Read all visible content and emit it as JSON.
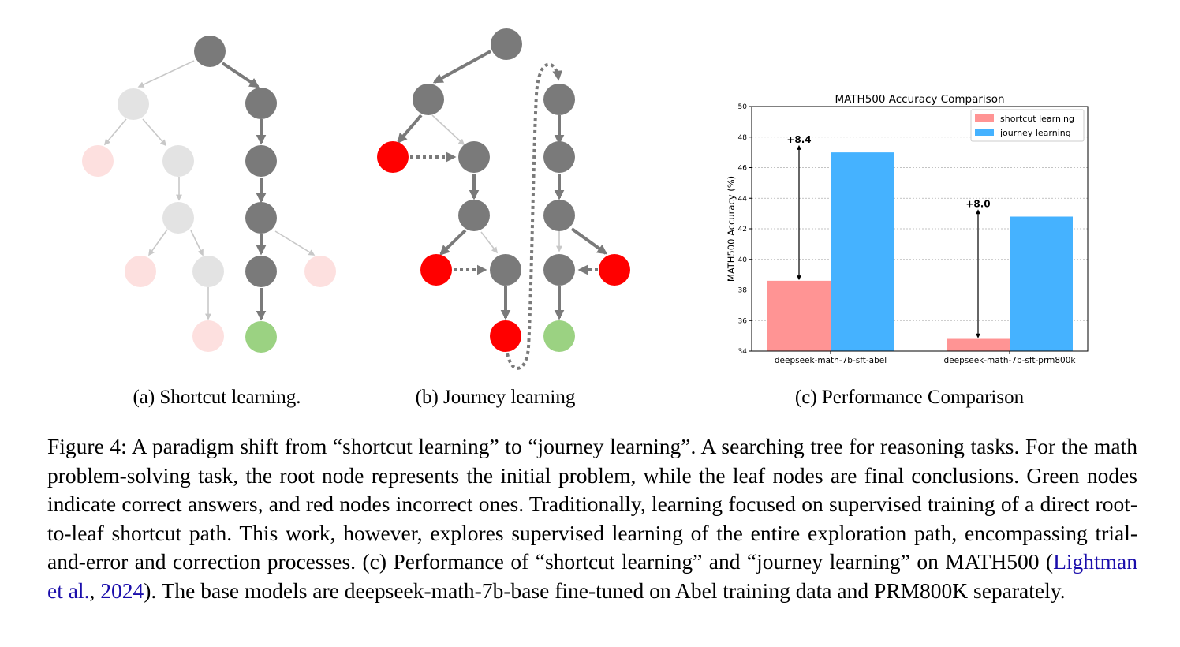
{
  "subfigures": {
    "a_label": "(a) Shortcut learning.",
    "b_label": "(b) Journey learning",
    "c_label": "(c) Performance Comparison"
  },
  "colors": {
    "node_active": "#7a7a7a",
    "node_faded": "#e3e3e3",
    "node_faded_wrong": "#fde0df",
    "node_wrong": "#ff0000",
    "node_correct": "#9bd282",
    "bar_shortcut": "#ff9494",
    "bar_journey": "#45b2ff"
  },
  "chart_data": {
    "type": "bar",
    "title": "MATH500 Accuracy Comparison",
    "ylabel": "MATH500 Accuracy (%)",
    "xlabel": "",
    "categories": [
      "deepseek-math-7b-sft-abel",
      "deepseek-math-7b-sft-prm800k"
    ],
    "series": [
      {
        "name": "shortcut learning",
        "values": [
          38.6,
          34.8
        ]
      },
      {
        "name": "journey learning",
        "values": [
          47.0,
          42.8
        ]
      }
    ],
    "annotations": [
      "+8.4",
      "+8.0"
    ],
    "ylim": [
      34,
      50
    ],
    "yticks": [
      "34",
      "36",
      "38",
      "40",
      "42",
      "44",
      "46",
      "48",
      "50"
    ],
    "grid": "y-dashed",
    "legend_position": "top-right"
  },
  "caption": {
    "part1": "Figure 4: A paradigm shift from “shortcut learning” to “journey learning”. A searching tree for reasoning tasks. For the math problem-solving task, the root node represents the initial problem, while the leaf nodes are final conclusions. Green nodes indicate correct answers, and red nodes incorrect ones. Traditionally, learning focused on supervised training of a direct root-to-leaf shortcut path. This work, however, explores supervised learning of the entire exploration path, encompassing trial-and-error and correction processes. (c) Performance of “shortcut learning” and “journey learning” on MATH500 (",
    "citation_author": "Lightman et al.",
    "citation_sep": ", ",
    "citation_year": "2024",
    "part2": "). The base models are deepseek-math-7b-base fine-tuned on Abel training data and PRM800K separately."
  }
}
